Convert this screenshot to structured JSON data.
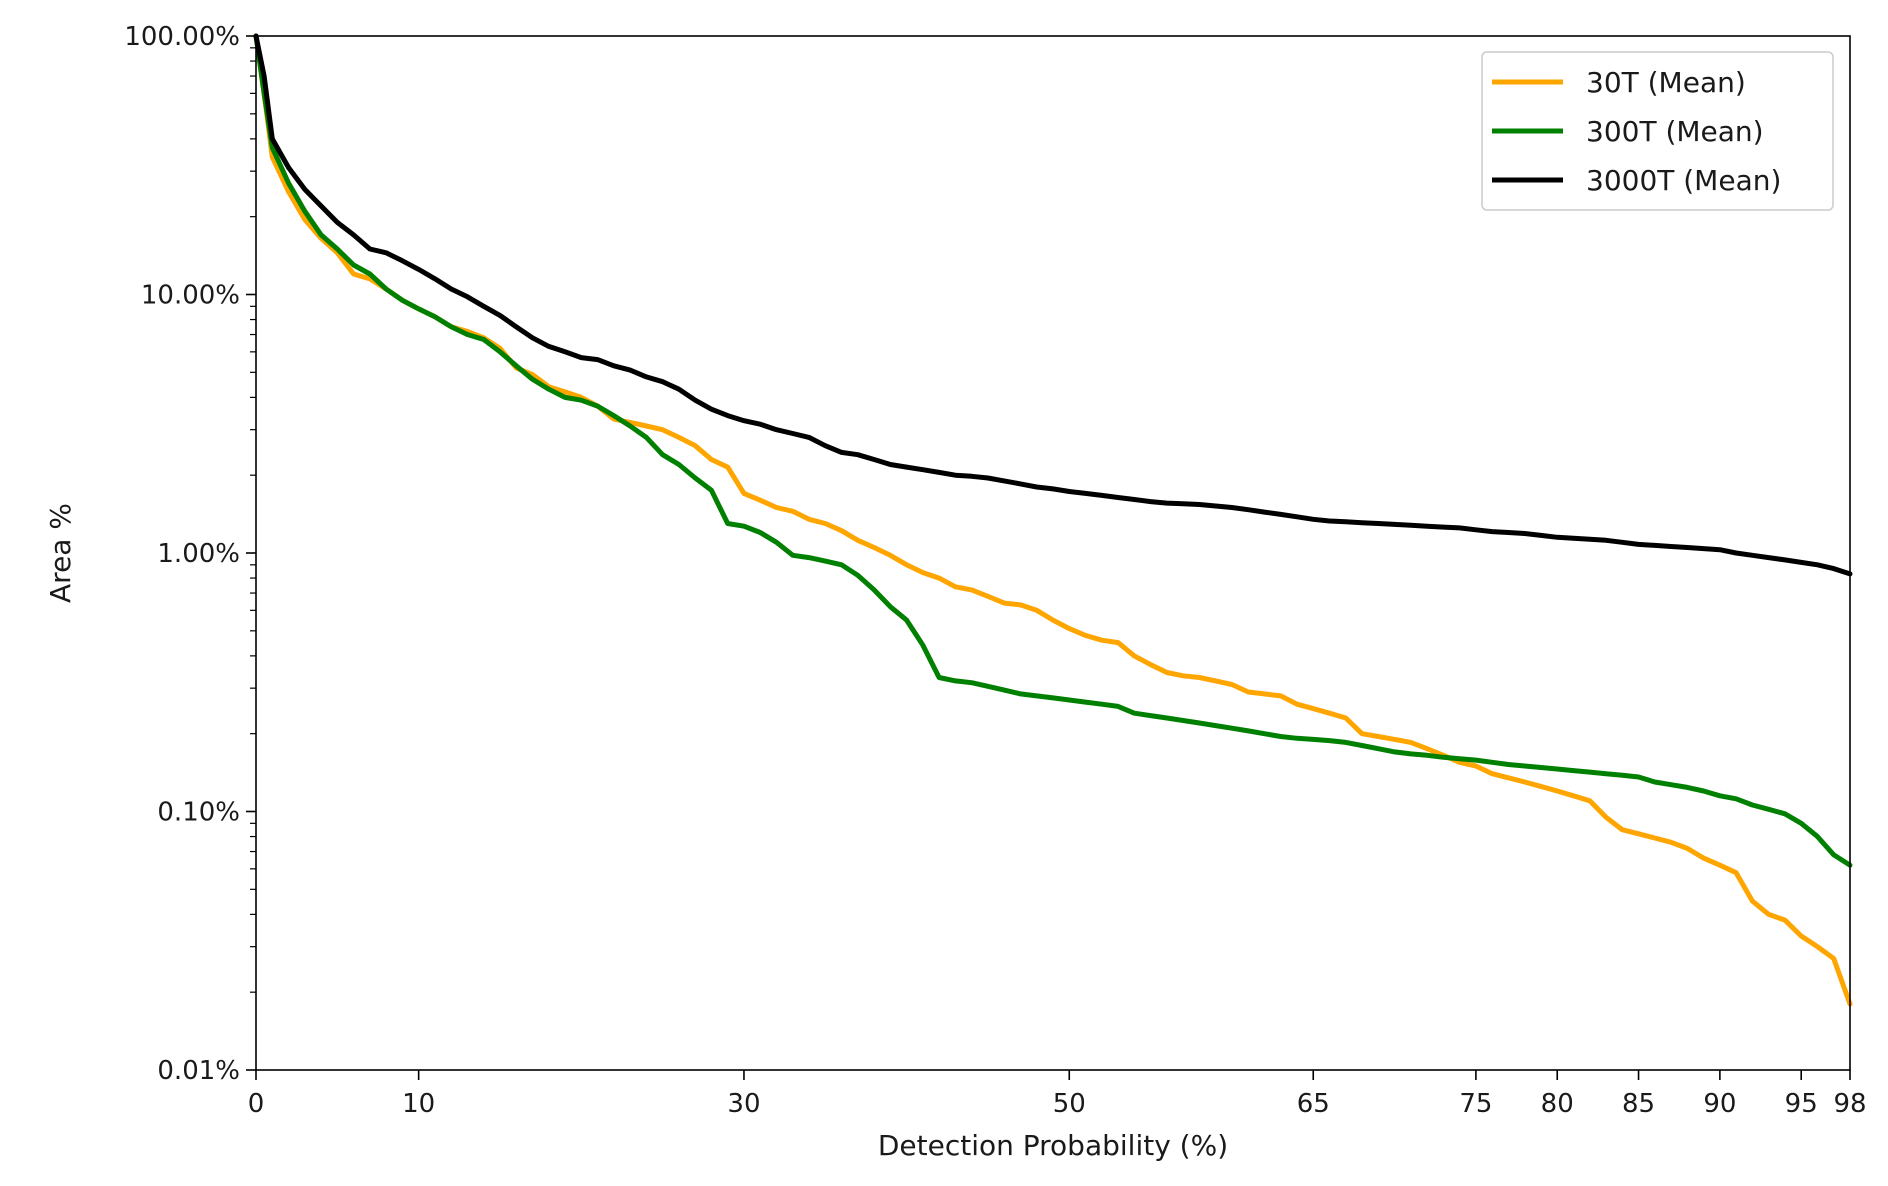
{
  "chart_data": {
    "type": "line",
    "title": "",
    "xlabel": "Detection Probability (%)",
    "ylabel": "Area %",
    "yscale": "log",
    "ylim": [
      0.01,
      100
    ],
    "grid": false,
    "legend_position": "top-right",
    "x_tick_labels": [
      "0",
      "10",
      "30",
      "50",
      "65",
      "75",
      "80",
      "85",
      "90",
      "95",
      "98"
    ],
    "y_tick_labels": [
      "0.01%",
      "0.10%",
      "1.00%",
      "10.00%",
      "100.00%"
    ],
    "y_tick_values": [
      0.01,
      0.1,
      1,
      10,
      100
    ],
    "series": [
      {
        "name": "30T (Mean)",
        "color": "#ffa500",
        "x": [
          0,
          0.5,
          1,
          2,
          3,
          4,
          5,
          6,
          7,
          8,
          9,
          10,
          11,
          12,
          13,
          14,
          15,
          16,
          17,
          18,
          19,
          20,
          21,
          22,
          23,
          24,
          25,
          26,
          27,
          28,
          29,
          30,
          31,
          32,
          33,
          34,
          35,
          36,
          37,
          38,
          39,
          40,
          41,
          42,
          43,
          44,
          45,
          46,
          47,
          48,
          49,
          50,
          51,
          52,
          53,
          54,
          55,
          56,
          57,
          58,
          59,
          60,
          61,
          62,
          63,
          64,
          65,
          66,
          67,
          68,
          69,
          70,
          71,
          72,
          73,
          74,
          75,
          76,
          77,
          78,
          79,
          80,
          81,
          82,
          83,
          84,
          85,
          86,
          87,
          88,
          89,
          90,
          91,
          92,
          93,
          94,
          95,
          96,
          97,
          98
        ],
        "y": [
          100,
          60,
          34,
          25,
          19.5,
          16.5,
          14.5,
          12,
          11.5,
          10.5,
          9.5,
          8.8,
          8.2,
          7.5,
          7.2,
          6.8,
          6.2,
          5.2,
          4.9,
          4.4,
          4.2,
          4.0,
          3.7,
          3.3,
          3.2,
          3.1,
          3.0,
          2.8,
          2.6,
          2.3,
          2.15,
          1.7,
          1.6,
          1.5,
          1.45,
          1.35,
          1.3,
          1.22,
          1.12,
          1.05,
          0.98,
          0.9,
          0.84,
          0.8,
          0.74,
          0.72,
          0.68,
          0.64,
          0.63,
          0.6,
          0.55,
          0.51,
          0.48,
          0.46,
          0.45,
          0.4,
          0.37,
          0.345,
          0.335,
          0.33,
          0.32,
          0.31,
          0.29,
          0.285,
          0.28,
          0.26,
          0.25,
          0.24,
          0.23,
          0.2,
          0.195,
          0.19,
          0.185,
          0.175,
          0.165,
          0.155,
          0.15,
          0.14,
          0.135,
          0.13,
          0.125,
          0.12,
          0.115,
          0.11,
          0.095,
          0.085,
          0.082,
          0.079,
          0.076,
          0.072,
          0.066,
          0.062,
          0.058,
          0.045,
          0.04,
          0.038,
          0.033,
          0.03,
          0.027,
          0.018
        ]
      },
      {
        "name": "300T (Mean)",
        "color": "#008000",
        "x": [
          0,
          0.5,
          1,
          2,
          3,
          4,
          5,
          6,
          7,
          8,
          9,
          10,
          11,
          12,
          13,
          14,
          15,
          16,
          17,
          18,
          19,
          20,
          21,
          22,
          23,
          24,
          25,
          26,
          27,
          28,
          29,
          30,
          31,
          32,
          33,
          34,
          35,
          36,
          37,
          38,
          39,
          40,
          41,
          42,
          43,
          44,
          45,
          46,
          47,
          48,
          49,
          50,
          51,
          52,
          53,
          54,
          55,
          56,
          57,
          58,
          59,
          60,
          61,
          62,
          63,
          64,
          65,
          66,
          67,
          68,
          69,
          70,
          71,
          72,
          73,
          74,
          75,
          76,
          77,
          78,
          79,
          80,
          81,
          82,
          83,
          84,
          85,
          86,
          87,
          88,
          89,
          90,
          91,
          92,
          93,
          94,
          95,
          96,
          97,
          98
        ],
        "y": [
          100,
          60,
          37,
          27,
          21,
          17,
          15,
          13,
          12,
          10.5,
          9.5,
          8.8,
          8.2,
          7.5,
          7.0,
          6.7,
          6.0,
          5.3,
          4.7,
          4.3,
          4.0,
          3.9,
          3.7,
          3.4,
          3.1,
          2.8,
          2.4,
          2.2,
          1.95,
          1.75,
          1.3,
          1.27,
          1.2,
          1.1,
          0.98,
          0.96,
          0.93,
          0.9,
          0.82,
          0.72,
          0.62,
          0.55,
          0.44,
          0.33,
          0.32,
          0.315,
          0.305,
          0.295,
          0.285,
          0.28,
          0.275,
          0.27,
          0.265,
          0.26,
          0.255,
          0.24,
          0.235,
          0.23,
          0.225,
          0.22,
          0.215,
          0.21,
          0.205,
          0.2,
          0.195,
          0.192,
          0.19,
          0.188,
          0.185,
          0.18,
          0.175,
          0.17,
          0.167,
          0.165,
          0.162,
          0.16,
          0.158,
          0.155,
          0.152,
          0.15,
          0.148,
          0.146,
          0.144,
          0.142,
          0.14,
          0.138,
          0.136,
          0.13,
          0.127,
          0.124,
          0.12,
          0.115,
          0.112,
          0.106,
          0.102,
          0.098,
          0.09,
          0.08,
          0.068,
          0.062
        ]
      },
      {
        "name": "3000T (Mean)",
        "color": "#000000",
        "x": [
          0,
          0.5,
          1,
          2,
          3,
          4,
          5,
          6,
          7,
          8,
          9,
          10,
          11,
          12,
          13,
          14,
          15,
          16,
          17,
          18,
          19,
          20,
          21,
          22,
          23,
          24,
          25,
          26,
          27,
          28,
          29,
          30,
          31,
          32,
          33,
          34,
          35,
          36,
          37,
          38,
          39,
          40,
          41,
          42,
          43,
          44,
          45,
          46,
          47,
          48,
          49,
          50,
          51,
          52,
          53,
          54,
          55,
          56,
          57,
          58,
          59,
          60,
          61,
          62,
          63,
          64,
          65,
          66,
          67,
          68,
          69,
          70,
          71,
          72,
          73,
          74,
          75,
          76,
          77,
          78,
          79,
          80,
          81,
          82,
          83,
          84,
          85,
          86,
          87,
          88,
          89,
          90,
          91,
          92,
          93,
          94,
          95,
          96,
          97,
          98
        ],
        "y": [
          100,
          70,
          40,
          31,
          25.5,
          22,
          19,
          17,
          15,
          14.5,
          13.5,
          12.5,
          11.5,
          10.5,
          9.8,
          9.0,
          8.3,
          7.5,
          6.8,
          6.3,
          6.0,
          5.7,
          5.6,
          5.3,
          5.1,
          4.8,
          4.6,
          4.3,
          3.9,
          3.6,
          3.4,
          3.25,
          3.15,
          3.0,
          2.9,
          2.8,
          2.6,
          2.45,
          2.4,
          2.3,
          2.2,
          2.15,
          2.1,
          2.05,
          2.0,
          1.98,
          1.95,
          1.9,
          1.85,
          1.8,
          1.77,
          1.73,
          1.7,
          1.67,
          1.64,
          1.61,
          1.58,
          1.56,
          1.55,
          1.54,
          1.52,
          1.5,
          1.47,
          1.44,
          1.41,
          1.38,
          1.35,
          1.33,
          1.32,
          1.31,
          1.3,
          1.29,
          1.28,
          1.27,
          1.26,
          1.25,
          1.23,
          1.21,
          1.2,
          1.19,
          1.17,
          1.15,
          1.14,
          1.13,
          1.12,
          1.1,
          1.08,
          1.07,
          1.06,
          1.05,
          1.04,
          1.03,
          1.0,
          0.98,
          0.96,
          0.94,
          0.92,
          0.9,
          0.87,
          0.83
        ]
      }
    ]
  }
}
